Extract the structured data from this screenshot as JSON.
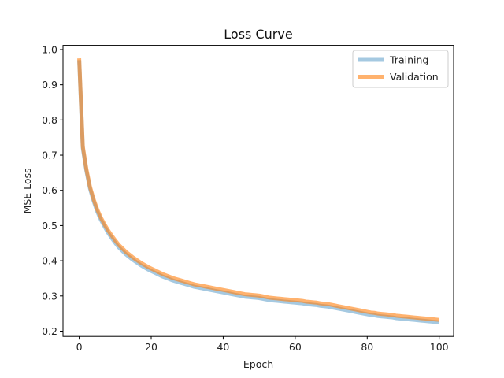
{
  "chart_data": {
    "type": "line",
    "title": "Loss Curve",
    "xlabel": "Epoch",
    "ylabel": "MSE Loss",
    "xlim": [
      -4.5,
      104
    ],
    "ylim": [
      0.185,
      1.012
    ],
    "xticks": [
      0,
      20,
      40,
      60,
      80,
      100
    ],
    "yticks": [
      0.2,
      0.3,
      0.4,
      0.5,
      0.6,
      0.7,
      0.8,
      0.9,
      1.0
    ],
    "ytick_labels": [
      "0.2",
      "0.3",
      "0.4",
      "0.5",
      "0.6",
      "0.7",
      "0.8",
      "0.9",
      "1.0"
    ],
    "grid": false,
    "legend": "top-right",
    "x": [
      0,
      1,
      2,
      3,
      4,
      5,
      6,
      7,
      8,
      9,
      10,
      11,
      12,
      13,
      14,
      15,
      16,
      17,
      18,
      19,
      20,
      21,
      22,
      23,
      24,
      25,
      26,
      27,
      28,
      29,
      30,
      31,
      32,
      33,
      34,
      35,
      36,
      37,
      38,
      39,
      40,
      41,
      42,
      43,
      44,
      45,
      46,
      47,
      48,
      49,
      50,
      51,
      52,
      53,
      54,
      55,
      56,
      57,
      58,
      59,
      60,
      61,
      62,
      63,
      64,
      65,
      66,
      67,
      68,
      69,
      70,
      71,
      72,
      73,
      74,
      75,
      76,
      77,
      78,
      79,
      80,
      81,
      82,
      83,
      84,
      85,
      86,
      87,
      88,
      89,
      90,
      91,
      92,
      93,
      94,
      95,
      96,
      97,
      98,
      99,
      100
    ],
    "series": [
      {
        "name": "Training",
        "color": "#1f77b4",
        "opacity": 0.4,
        "values": [
          0.97,
          0.72,
          0.655,
          0.605,
          0.57,
          0.54,
          0.517,
          0.498,
          0.48,
          0.465,
          0.451,
          0.438,
          0.428,
          0.418,
          0.41,
          0.402,
          0.395,
          0.388,
          0.382,
          0.376,
          0.371,
          0.366,
          0.361,
          0.356,
          0.352,
          0.348,
          0.344,
          0.341,
          0.338,
          0.335,
          0.332,
          0.329,
          0.326,
          0.324,
          0.322,
          0.32,
          0.318,
          0.316,
          0.314,
          0.312,
          0.31,
          0.308,
          0.306,
          0.304,
          0.302,
          0.3,
          0.298,
          0.297,
          0.296,
          0.295,
          0.294,
          0.292,
          0.29,
          0.288,
          0.287,
          0.286,
          0.285,
          0.284,
          0.283,
          0.282,
          0.281,
          0.28,
          0.279,
          0.277,
          0.276,
          0.275,
          0.274,
          0.272,
          0.271,
          0.27,
          0.268,
          0.266,
          0.264,
          0.262,
          0.26,
          0.258,
          0.256,
          0.254,
          0.252,
          0.25,
          0.248,
          0.246,
          0.245,
          0.243,
          0.242,
          0.241,
          0.24,
          0.239,
          0.237,
          0.236,
          0.235,
          0.234,
          0.233,
          0.232,
          0.231,
          0.23,
          0.229,
          0.228,
          0.227,
          0.226,
          0.225
        ]
      },
      {
        "name": "Validation",
        "color": "#ff7f0e",
        "opacity": 0.6,
        "values": [
          0.975,
          0.725,
          0.66,
          0.61,
          0.575,
          0.546,
          0.523,
          0.504,
          0.487,
          0.472,
          0.458,
          0.445,
          0.435,
          0.425,
          0.417,
          0.409,
          0.402,
          0.395,
          0.389,
          0.383,
          0.378,
          0.373,
          0.368,
          0.363,
          0.359,
          0.355,
          0.351,
          0.348,
          0.345,
          0.342,
          0.339,
          0.336,
          0.333,
          0.331,
          0.329,
          0.327,
          0.325,
          0.323,
          0.321,
          0.319,
          0.317,
          0.315,
          0.313,
          0.311,
          0.309,
          0.307,
          0.305,
          0.304,
          0.303,
          0.302,
          0.301,
          0.299,
          0.297,
          0.295,
          0.294,
          0.293,
          0.292,
          0.291,
          0.29,
          0.289,
          0.288,
          0.287,
          0.286,
          0.284,
          0.283,
          0.282,
          0.281,
          0.279,
          0.278,
          0.277,
          0.275,
          0.273,
          0.271,
          0.269,
          0.267,
          0.265,
          0.263,
          0.261,
          0.259,
          0.257,
          0.255,
          0.253,
          0.252,
          0.25,
          0.249,
          0.248,
          0.247,
          0.246,
          0.244,
          0.243,
          0.242,
          0.241,
          0.24,
          0.239,
          0.238,
          0.237,
          0.236,
          0.235,
          0.234,
          0.233,
          0.232
        ]
      }
    ]
  }
}
